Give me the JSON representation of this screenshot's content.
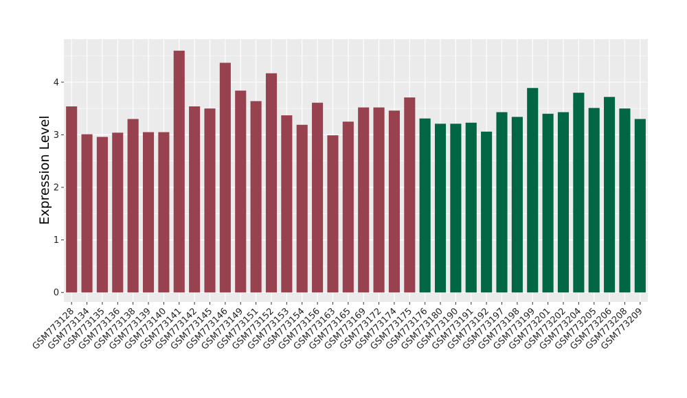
{
  "chart_data": {
    "type": "bar",
    "ylabel": "Expression Level",
    "xlabel": "",
    "ylim": [
      -0.18,
      4.82
    ],
    "yticks": [
      0,
      1,
      2,
      3,
      4
    ],
    "grid": true,
    "legend": "none",
    "panel_background": "#EBEBEB",
    "grid_color": "#FFFFFF",
    "categories": [
      "GSM773128",
      "GSM773134",
      "GSM773135",
      "GSM773136",
      "GSM773138",
      "GSM773139",
      "GSM773140",
      "GSM773141",
      "GSM773142",
      "GSM773145",
      "GSM773146",
      "GSM773149",
      "GSM773151",
      "GSM773152",
      "GSM773153",
      "GSM773154",
      "GSM773156",
      "GSM773163",
      "GSM773165",
      "GSM773169",
      "GSM773172",
      "GSM773174",
      "GSM773175",
      "GSM773176",
      "GSM773180",
      "GSM773190",
      "GSM773191",
      "GSM773192",
      "GSM773197",
      "GSM773198",
      "GSM773199",
      "GSM773201",
      "GSM773202",
      "GSM773204",
      "GSM773205",
      "GSM773206",
      "GSM773208",
      "GSM773209"
    ],
    "values": [
      3.54,
      3.01,
      2.96,
      3.04,
      3.3,
      3.05,
      3.05,
      4.6,
      3.54,
      3.5,
      4.37,
      3.84,
      3.64,
      4.17,
      3.37,
      3.19,
      3.61,
      2.99,
      3.25,
      3.52,
      3.52,
      3.46,
      3.71,
      3.31,
      3.21,
      3.21,
      3.23,
      3.06,
      3.43,
      3.34,
      3.89,
      3.4,
      3.43,
      3.8,
      3.51,
      3.72,
      3.5,
      3.3
    ],
    "group_colors": [
      "#99424F",
      "#99424F",
      "#99424F",
      "#99424F",
      "#99424F",
      "#99424F",
      "#99424F",
      "#99424F",
      "#99424F",
      "#99424F",
      "#99424F",
      "#99424F",
      "#99424F",
      "#99424F",
      "#99424F",
      "#99424F",
      "#99424F",
      "#99424F",
      "#99424F",
      "#99424F",
      "#99424F",
      "#99424F",
      "#99424F",
      "#006644",
      "#006644",
      "#006644",
      "#006644",
      "#006644",
      "#006644",
      "#006644",
      "#006644",
      "#006644",
      "#006644",
      "#006644",
      "#006644",
      "#006644",
      "#006644",
      "#006644"
    ]
  }
}
